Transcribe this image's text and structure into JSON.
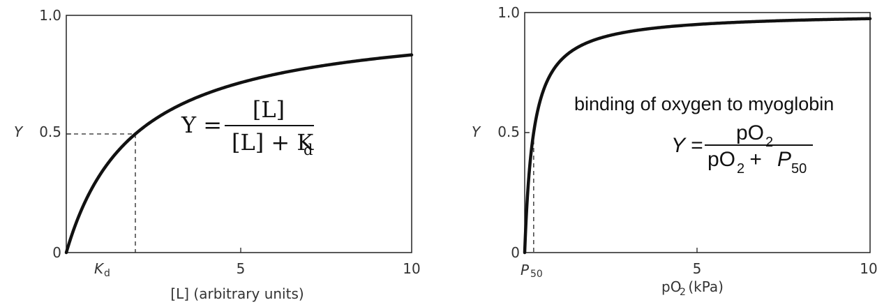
{
  "chart_data": [
    {
      "type": "line",
      "xlabel": "[L] (arbitrary units)",
      "ylabel": "Y",
      "xlim": [
        0,
        10
      ],
      "ylim": [
        0,
        1.0
      ],
      "x_ticks": [
        {
          "value": 2.0,
          "label": "K",
          "sub": "d"
        },
        {
          "value": 5,
          "label": "5"
        },
        {
          "value": 10,
          "label": "10"
        }
      ],
      "y_ticks": [
        {
          "value": 0,
          "label": "0"
        },
        {
          "value": 0.5,
          "label": "0.5"
        },
        {
          "value": 1.0,
          "label": "1.0"
        }
      ],
      "grid": false,
      "legend": "none",
      "series": [
        {
          "function": "hyperbolic",
          "half_saturation": 2.0,
          "x": [
            0,
            0.25,
            0.5,
            1,
            1.5,
            2,
            3,
            4,
            5,
            6,
            7,
            8,
            9,
            10
          ],
          "y": [
            0,
            0.111,
            0.2,
            0.333,
            0.429,
            0.5,
            0.6,
            0.667,
            0.714,
            0.75,
            0.778,
            0.8,
            0.818,
            0.833
          ]
        }
      ],
      "reference": {
        "x": 2.0,
        "y": 0.5
      },
      "equation": {
        "lhs": "Y =",
        "numerator": "[L]",
        "denominator_main": "[L] + K",
        "denominator_sub": "d"
      }
    },
    {
      "type": "line",
      "xlabel_prefix": "pO",
      "xlabel_sub": "2",
      "xlabel_suffix": " (kPa)",
      "ylabel": "Y",
      "xlim": [
        0,
        10
      ],
      "ylim": [
        0,
        1.0
      ],
      "x_ticks": [
        {
          "value": 0.26,
          "label": "P",
          "sub": "50"
        },
        {
          "value": 5,
          "label": "5"
        },
        {
          "value": 10,
          "label": "10"
        }
      ],
      "y_ticks": [
        {
          "value": 0,
          "label": "0"
        },
        {
          "value": 0.5,
          "label": "0.5"
        },
        {
          "value": 1.0,
          "label": "1.0"
        }
      ],
      "grid": false,
      "legend": "none",
      "annotation": "binding of oxygen to myoglobin",
      "series": [
        {
          "function": "hyperbolic",
          "half_saturation": 0.26,
          "x": [
            0,
            0.1,
            0.26,
            0.5,
            1,
            1.5,
            2,
            3,
            4,
            5,
            6,
            7,
            8,
            9,
            10
          ],
          "y": [
            0,
            0.278,
            0.5,
            0.658,
            0.794,
            0.852,
            0.885,
            0.92,
            0.939,
            0.951,
            0.958,
            0.964,
            0.969,
            0.972,
            0.975
          ]
        }
      ],
      "reference": {
        "x": 0.26,
        "y": 0.5
      },
      "equation": {
        "lhs": "Y =",
        "num_main": "pO",
        "num_sub": "2",
        "den_main": "pO",
        "den_sub": "2",
        "den_plus": " + ",
        "den_p": "P",
        "den_p_sub": "50"
      }
    }
  ]
}
